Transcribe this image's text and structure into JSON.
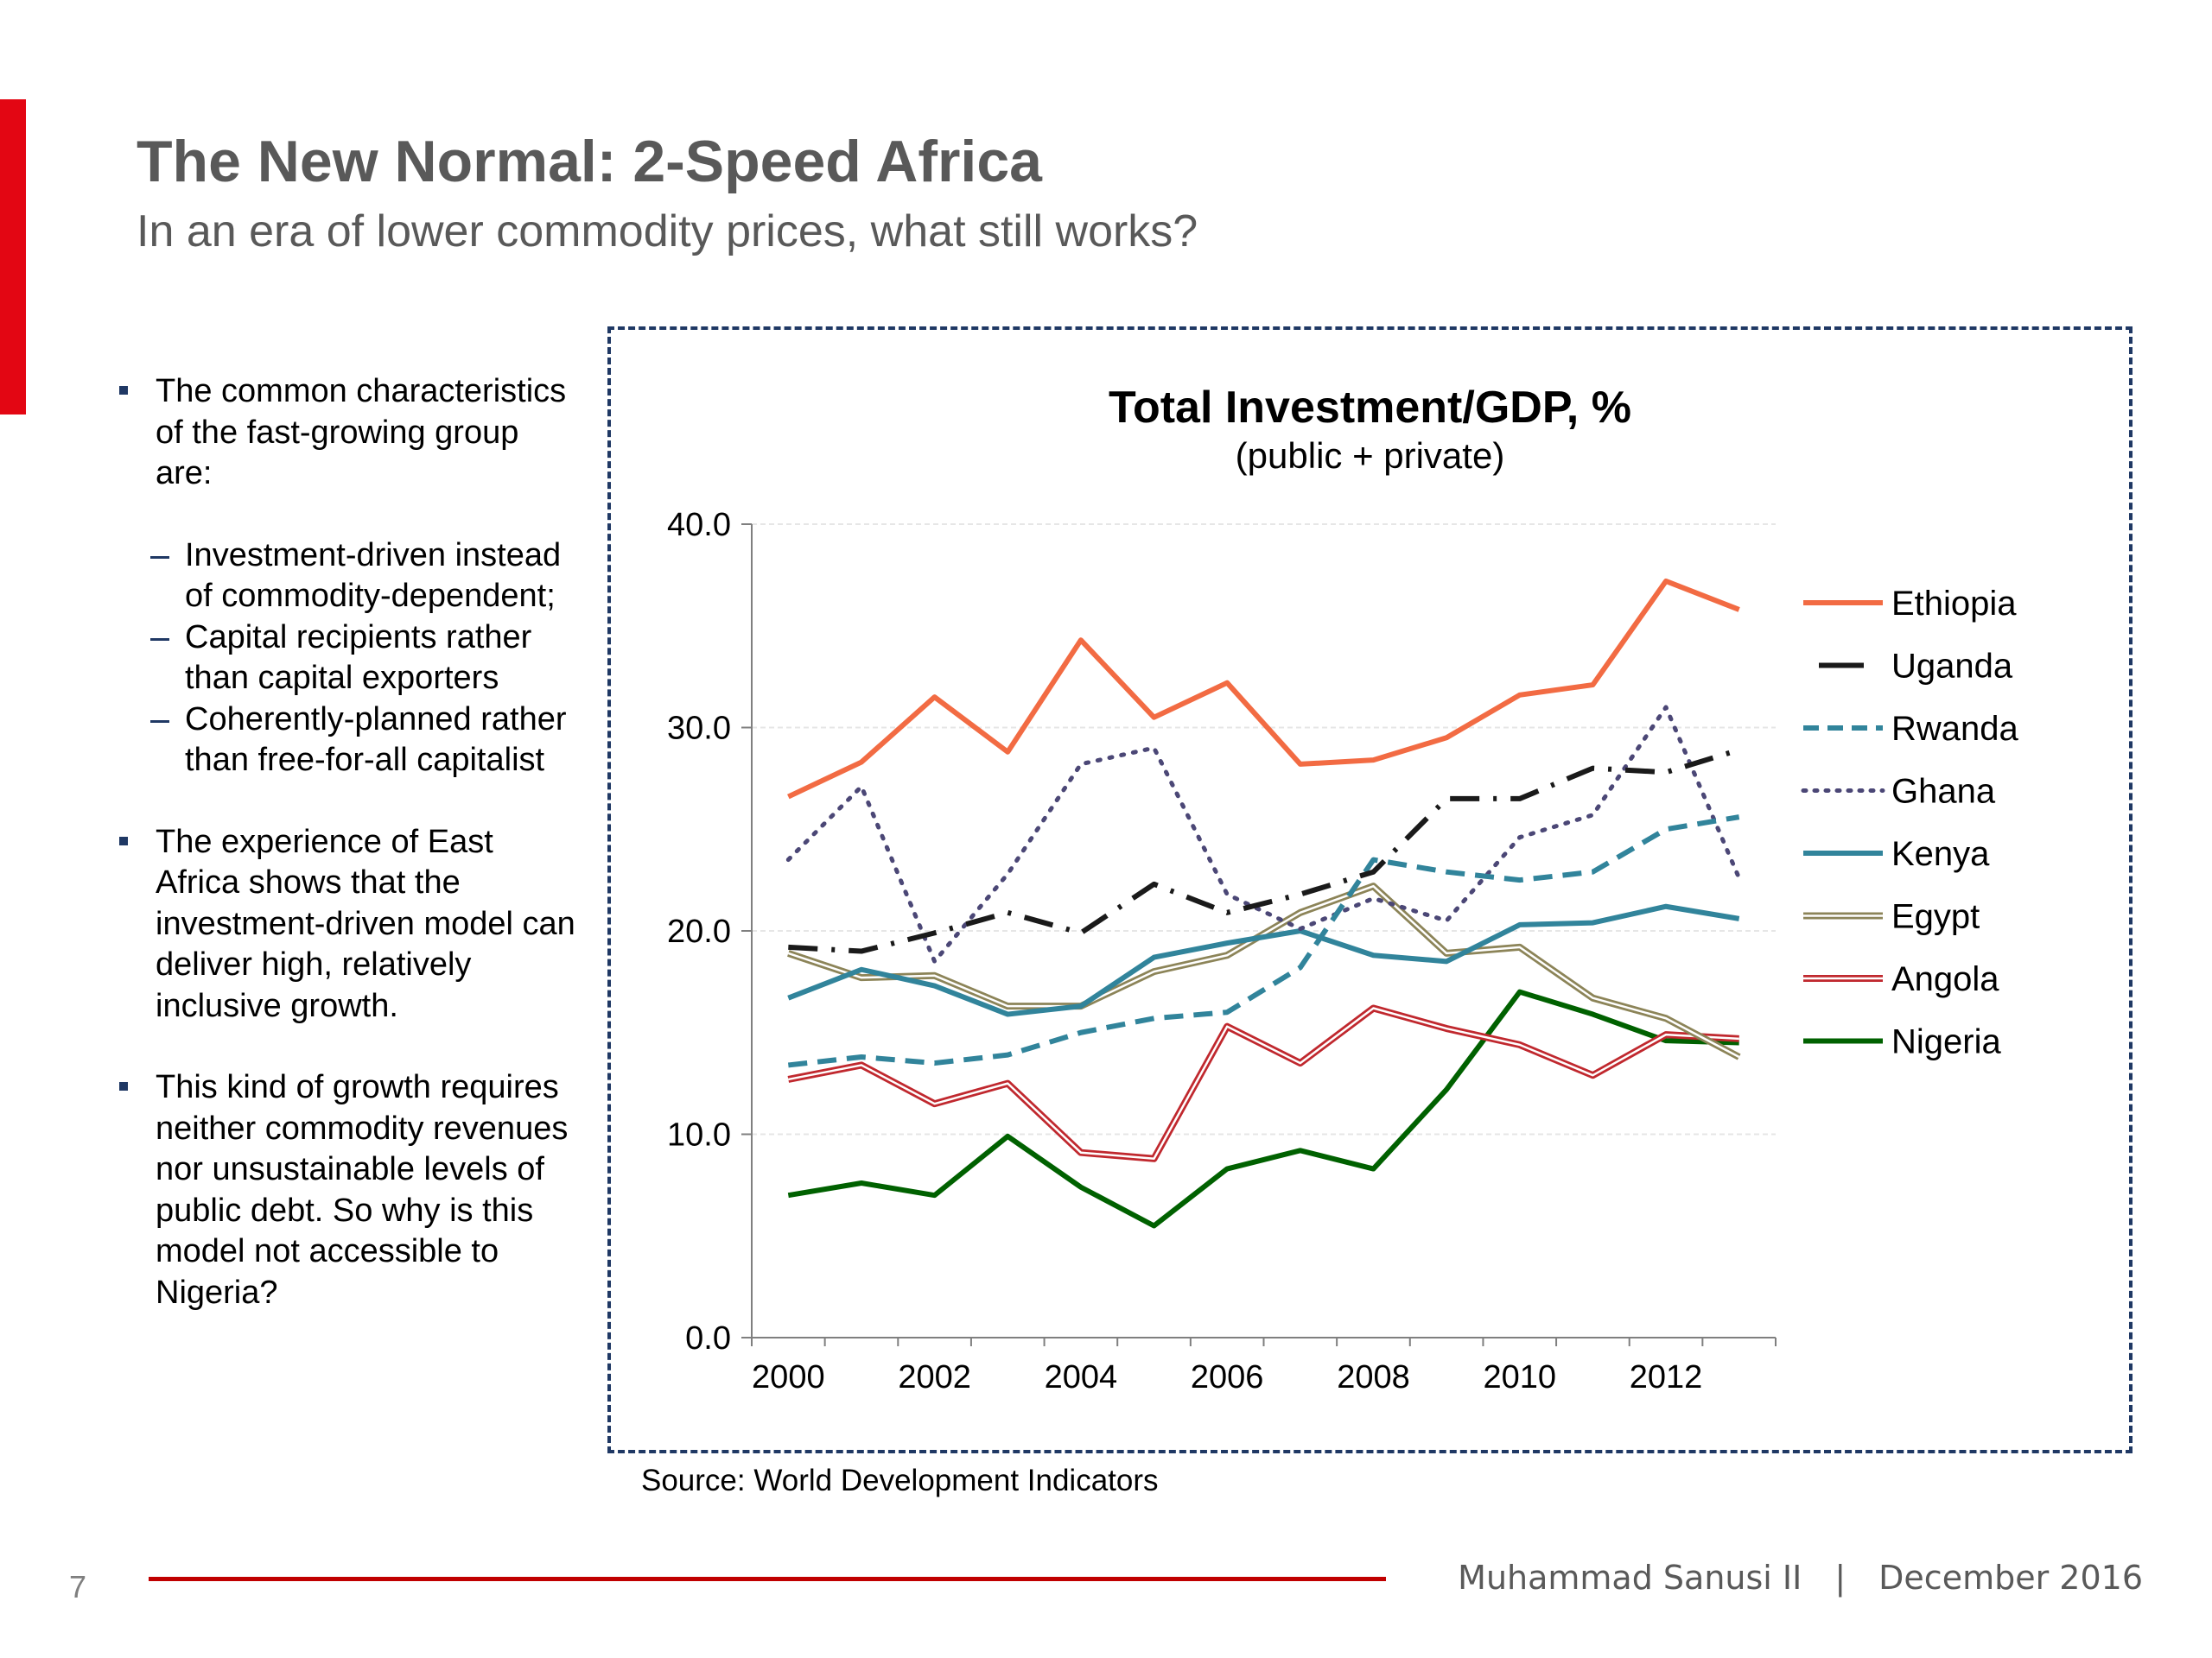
{
  "slide": {
    "title": "The New Normal: 2-Speed Africa",
    "subtitle": "In an era of lower commodity prices, what still works?",
    "accent_color": "#e30613",
    "page_number": "7",
    "footer": {
      "author": "Muhammad Sanusi II",
      "separator": "|",
      "date": "December 2016"
    }
  },
  "left_text": {
    "bullet1": "The common characteristics of the fast-growing group are:",
    "sub1": "Investment-driven instead of commodity-dependent;",
    "sub2": "Capital recipients rather than capital exporters",
    "sub3": "Coherently-planned rather than free-for-all capitalist",
    "bullet2": "The experience of East Africa shows that the investment-driven model can deliver high, relatively inclusive growth.",
    "bullet3": "This kind of growth requires neither commodity revenues nor unsustainable levels of public debt. So why is this model not accessible to Nigeria?"
  },
  "chart_data": {
    "type": "line",
    "title": "Total Investment/GDP, %",
    "subtitle": "(public + private)",
    "source": "Source: World Development Indicators",
    "x": [
      2000,
      2001,
      2002,
      2003,
      2004,
      2005,
      2006,
      2007,
      2008,
      2009,
      2010,
      2011,
      2012,
      2013
    ],
    "x_tick_labels": [
      "2000",
      "2002",
      "2004",
      "2006",
      "2008",
      "2010",
      "2012"
    ],
    "y_tick_labels": [
      "0.0",
      "10.0",
      "20.0",
      "30.0",
      "40.0"
    ],
    "ylim": [
      0,
      40
    ],
    "grid": true,
    "legend_position": "right",
    "series": [
      {
        "name": "Ethiopia",
        "color": "#f26b43",
        "style": "solid",
        "values": [
          26.6,
          28.3,
          31.5,
          28.8,
          34.3,
          30.5,
          32.2,
          28.2,
          28.4,
          29.5,
          31.6,
          32.1,
          37.2,
          35.8
        ]
      },
      {
        "name": "Uganda",
        "color": "#1a1a1a",
        "style": "dashdot",
        "values": [
          19.2,
          19.0,
          19.9,
          20.9,
          19.9,
          22.3,
          20.9,
          21.8,
          22.9,
          26.5,
          26.5,
          28.0,
          27.8,
          28.9
        ]
      },
      {
        "name": "Rwanda",
        "color": "#31849b",
        "style": "dashed",
        "values": [
          13.4,
          13.8,
          13.5,
          13.9,
          15.0,
          15.7,
          16.0,
          18.2,
          23.5,
          22.9,
          22.5,
          22.9,
          25.0,
          25.6
        ]
      },
      {
        "name": "Ghana",
        "color": "#4b4776",
        "style": "dotted",
        "values": [
          23.5,
          27.1,
          18.5,
          22.8,
          28.2,
          29.0,
          21.8,
          20.1,
          21.6,
          20.5,
          24.6,
          25.7,
          31.0,
          22.6
        ]
      },
      {
        "name": "Kenya",
        "color": "#31849b",
        "style": "solid",
        "values": [
          16.7,
          18.1,
          17.3,
          15.9,
          16.3,
          18.7,
          19.4,
          20.0,
          18.8,
          18.5,
          20.3,
          20.4,
          21.2,
          20.6
        ]
      },
      {
        "name": "Egypt",
        "color": "#8c8458",
        "style": "double",
        "values": [
          18.9,
          17.7,
          17.8,
          16.3,
          16.3,
          18.0,
          18.8,
          20.9,
          22.2,
          18.9,
          19.2,
          16.7,
          15.7,
          13.8
        ]
      },
      {
        "name": "Angola",
        "color": "#c0282e",
        "style": "double",
        "values": [
          12.7,
          13.4,
          11.5,
          12.5,
          9.1,
          8.8,
          15.3,
          13.5,
          16.2,
          15.2,
          14.4,
          12.9,
          14.9,
          14.7
        ]
      },
      {
        "name": "Nigeria",
        "color": "#006100",
        "style": "solid",
        "values": [
          7.0,
          7.6,
          7.0,
          9.9,
          7.4,
          5.5,
          8.3,
          9.2,
          8.3,
          12.2,
          17.0,
          15.9,
          14.6,
          14.5
        ]
      }
    ]
  }
}
